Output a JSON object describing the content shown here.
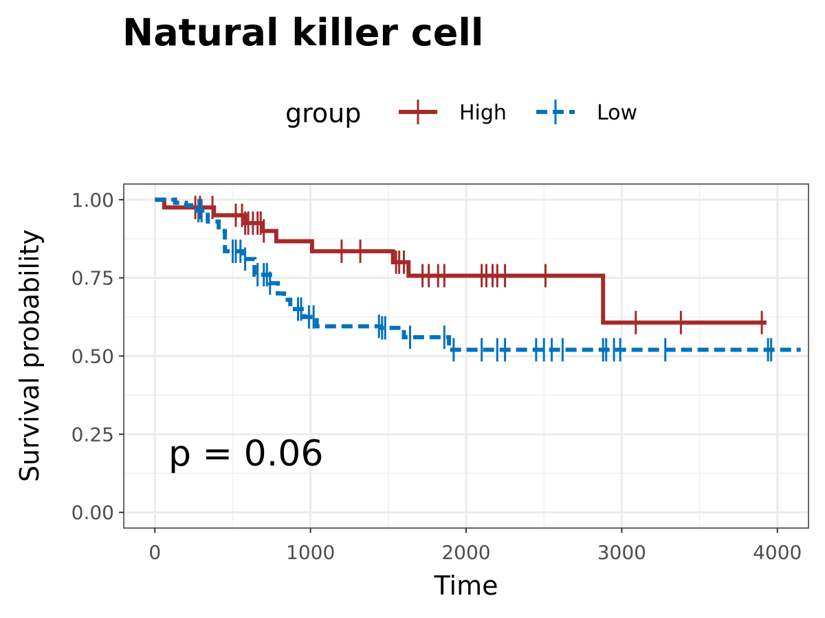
{
  "chart_data": {
    "type": "line",
    "subtype": "kaplan-meier",
    "title": "Natural killer cell",
    "xlabel": "Time",
    "ylabel": "Survival probability",
    "xlim": [
      -200,
      4200
    ],
    "ylim": [
      -0.05,
      1.05
    ],
    "x_ticks": [
      0,
      1000,
      2000,
      3000,
      4000
    ],
    "x_tick_labels": [
      "0",
      "1000",
      "2000",
      "3000",
      "4000"
    ],
    "y_ticks": [
      0,
      0.25,
      0.5,
      0.75,
      1.0
    ],
    "y_tick_labels": [
      "0.00",
      "0.25",
      "0.50",
      "0.75",
      "1.00"
    ],
    "grid": true,
    "legend": {
      "title": "group",
      "position": "top"
    },
    "annotation": "p = 0.06",
    "series": [
      {
        "name": "High",
        "color": "#A52A2A",
        "dash": "solid",
        "steps": [
          [
            0,
            1.0
          ],
          [
            60,
            0.975
          ],
          [
            380,
            0.95
          ],
          [
            580,
            0.925
          ],
          [
            690,
            0.9
          ],
          [
            780,
            0.867
          ],
          [
            1010,
            0.835
          ],
          [
            1530,
            0.8
          ],
          [
            1630,
            0.757
          ],
          [
            2880,
            0.607
          ],
          [
            3930,
            0.607
          ]
        ],
        "censor_x": [
          260,
          290,
          370,
          520,
          560,
          580,
          600,
          630,
          660,
          680,
          700,
          1200,
          1320,
          1550,
          1570,
          1600,
          1720,
          1760,
          1820,
          1860,
          2100,
          2130,
          2170,
          2200,
          2250,
          2510,
          3090,
          3380,
          3900
        ]
      },
      {
        "name": "Low",
        "color": "#0072BD",
        "dash": "dashed",
        "steps": [
          [
            0,
            1.0
          ],
          [
            130,
            0.99
          ],
          [
            200,
            0.982
          ],
          [
            270,
            0.965
          ],
          [
            340,
            0.93
          ],
          [
            410,
            0.9
          ],
          [
            450,
            0.835
          ],
          [
            560,
            0.81
          ],
          [
            640,
            0.76
          ],
          [
            740,
            0.733
          ],
          [
            790,
            0.7
          ],
          [
            830,
            0.68
          ],
          [
            870,
            0.65
          ],
          [
            960,
            0.625
          ],
          [
            1040,
            0.595
          ],
          [
            1450,
            0.59
          ],
          [
            1600,
            0.56
          ],
          [
            1890,
            0.52
          ],
          [
            4150,
            0.52
          ]
        ],
        "censor_x": [
          280,
          300,
          500,
          520,
          550,
          580,
          660,
          700,
          720,
          740,
          920,
          940,
          990,
          1020,
          1440,
          1460,
          1480,
          1640,
          1860,
          1920,
          2100,
          2200,
          2250,
          2450,
          2500,
          2550,
          2620,
          2880,
          2900,
          2950,
          2990,
          3280,
          3940,
          3960
        ]
      }
    ]
  }
}
